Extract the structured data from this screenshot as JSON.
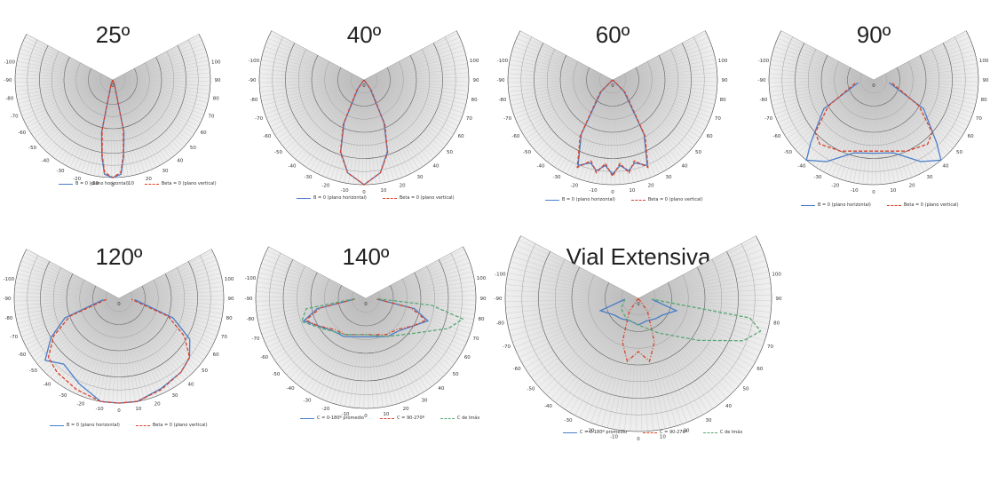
{
  "colors": {
    "blue": "#4a7ec8",
    "red": "#d8432a",
    "green": "#5aa876",
    "fill_dark": "#b9b9b9",
    "fill_light": "#f0f0f0",
    "grid": "#666666"
  },
  "chart_data": [
    {
      "type": "polar",
      "title": "25º",
      "angle_ticks_left": [
        "-100",
        "-90",
        "-80",
        "-70",
        "-60",
        "-50",
        "-40",
        "-30",
        "-20",
        "-10"
      ],
      "angle_ticks_right": [
        "100",
        "90",
        "80",
        "70",
        "60",
        "50",
        "40",
        "30",
        "20",
        "10"
      ],
      "angle_tick_bottom": "0",
      "radial_tick": "0",
      "series": [
        {
          "name": "B = 0 (plano horizontal)",
          "color": "blue",
          "dash": "solid",
          "points": [
            [
              -40,
              0
            ],
            [
              -20,
              0.05
            ],
            [
              -12,
              0.55
            ],
            [
              -8,
              0.8
            ],
            [
              -5,
              0.97
            ],
            [
              0,
              1.0
            ],
            [
              5,
              0.97
            ],
            [
              8,
              0.8
            ],
            [
              12,
              0.55
            ],
            [
              20,
              0.05
            ],
            [
              40,
              0
            ]
          ]
        },
        {
          "name": "Beta = 0 (plano vertical)",
          "color": "red",
          "dash": "dashed",
          "points": [
            [
              -40,
              0
            ],
            [
              -20,
              0.05
            ],
            [
              -12,
              0.52
            ],
            [
              -8,
              0.78
            ],
            [
              -5,
              0.95
            ],
            [
              0,
              1.0
            ],
            [
              5,
              0.95
            ],
            [
              8,
              0.78
            ],
            [
              12,
              0.52
            ],
            [
              20,
              0.05
            ],
            [
              40,
              0
            ]
          ]
        }
      ]
    },
    {
      "type": "polar",
      "title": "40º",
      "angle_ticks_left": [
        "-100",
        "-90",
        "-80",
        "-70",
        "-60",
        "-50",
        "-40",
        "-30",
        "-20",
        "-10"
      ],
      "angle_ticks_right": [
        "100",
        "90",
        "80",
        "70",
        "60",
        "50",
        "40",
        "30",
        "20",
        "10"
      ],
      "angle_tick_bottom": "0",
      "radial_tick": "0",
      "series": [
        {
          "name": "B = 0 (plano horizontal)",
          "color": "blue",
          "dash": "solid",
          "points": [
            [
              -60,
              0
            ],
            [
              -35,
              0.1
            ],
            [
              -25,
              0.45
            ],
            [
              -18,
              0.72
            ],
            [
              -10,
              0.9
            ],
            [
              0,
              1.0
            ],
            [
              10,
              0.9
            ],
            [
              18,
              0.72
            ],
            [
              25,
              0.45
            ],
            [
              35,
              0.1
            ],
            [
              60,
              0
            ]
          ]
        },
        {
          "name": "Beta = 0 (plano vertical)",
          "color": "red",
          "dash": "dashed",
          "points": [
            [
              -60,
              0
            ],
            [
              -35,
              0.12
            ],
            [
              -25,
              0.47
            ],
            [
              -18,
              0.73
            ],
            [
              -10,
              0.9
            ],
            [
              0,
              1.0
            ],
            [
              10,
              0.9
            ],
            [
              18,
              0.73
            ],
            [
              25,
              0.47
            ],
            [
              35,
              0.12
            ],
            [
              60,
              0
            ]
          ]
        }
      ]
    },
    {
      "type": "polar",
      "title": "60º",
      "angle_ticks_left": [
        "-100",
        "-90",
        "-80",
        "-70",
        "-60",
        "-50",
        "-40",
        "-30",
        "-20",
        "-10"
      ],
      "angle_ticks_right": [
        "100",
        "90",
        "80",
        "70",
        "60",
        "50",
        "40",
        "30",
        "20",
        "10"
      ],
      "angle_tick_bottom": "0",
      "radial_tick": "0",
      "series": [
        {
          "name": "B = 0 (plano horizontal)",
          "color": "blue",
          "dash": "solid",
          "points": [
            [
              -65,
              0
            ],
            [
              -45,
              0.15
            ],
            [
              -30,
              0.6
            ],
            [
              -22,
              0.88
            ],
            [
              -15,
              0.82
            ],
            [
              -10,
              0.88
            ],
            [
              -5,
              0.82
            ],
            [
              0,
              0.9
            ],
            [
              5,
              0.82
            ],
            [
              10,
              0.88
            ],
            [
              15,
              0.82
            ],
            [
              22,
              0.88
            ],
            [
              30,
              0.6
            ],
            [
              45,
              0.15
            ],
            [
              65,
              0
            ]
          ]
        },
        {
          "name": "Beta = 0 (plano vertical)",
          "color": "red",
          "dash": "dashed",
          "points": [
            [
              -65,
              0
            ],
            [
              -45,
              0.17
            ],
            [
              -30,
              0.62
            ],
            [
              -22,
              0.9
            ],
            [
              -15,
              0.8
            ],
            [
              -10,
              0.9
            ],
            [
              -5,
              0.8
            ],
            [
              0,
              0.92
            ],
            [
              5,
              0.8
            ],
            [
              10,
              0.9
            ],
            [
              15,
              0.8
            ],
            [
              22,
              0.9
            ],
            [
              30,
              0.62
            ],
            [
              45,
              0.17
            ],
            [
              65,
              0
            ]
          ]
        }
      ]
    },
    {
      "type": "polar",
      "title": "90º",
      "angle_ticks_left": [
        "-100",
        "-90",
        "-80",
        "-70",
        "-60",
        "-50",
        "-40",
        "-30",
        "-20",
        "-10"
      ],
      "angle_ticks_right": [
        "100",
        "90",
        "80",
        "70",
        "60",
        "50",
        "40",
        "30",
        "20",
        "10"
      ],
      "angle_tick_bottom": "0",
      "radial_tick": "0",
      "series": [
        {
          "name": "B = 0 (plano horizontal)",
          "color": "blue",
          "dash": "solid",
          "points": [
            [
              -80,
              0.15
            ],
            [
              -60,
              0.55
            ],
            [
              -45,
              0.85
            ],
            [
              -40,
              1.0
            ],
            [
              -30,
              0.9
            ],
            [
              -15,
              0.72
            ],
            [
              0,
              0.7
            ],
            [
              15,
              0.72
            ],
            [
              30,
              0.9
            ],
            [
              40,
              1.0
            ],
            [
              45,
              0.85
            ],
            [
              60,
              0.55
            ],
            [
              80,
              0.15
            ]
          ]
        },
        {
          "name": "Beta = 0 (plano vertical)",
          "color": "red",
          "dash": "dashed",
          "points": [
            [
              -80,
              0.18
            ],
            [
              -60,
              0.5
            ],
            [
              -48,
              0.75
            ],
            [
              -40,
              0.8
            ],
            [
              -25,
              0.75
            ],
            [
              0,
              0.68
            ],
            [
              25,
              0.75
            ],
            [
              40,
              0.8
            ],
            [
              48,
              0.75
            ],
            [
              60,
              0.5
            ],
            [
              80,
              0.18
            ]
          ]
        }
      ]
    },
    {
      "type": "polar",
      "title": "120º",
      "angle_ticks_left": [
        "-100",
        "-90",
        "-80",
        "-70",
        "-60",
        "-50",
        "-40",
        "-30",
        "-20",
        "-10"
      ],
      "angle_ticks_right": [
        "100",
        "90",
        "80",
        "70",
        "60",
        "50",
        "40",
        "30",
        "20",
        "10"
      ],
      "angle_tick_bottom": "0",
      "radial_tick": "0",
      "series": [
        {
          "name": "B = 0 (plano horizontal)",
          "color": "blue",
          "dash": "solid",
          "points": [
            [
              -85,
              0.15
            ],
            [
              -70,
              0.55
            ],
            [
              -60,
              0.75
            ],
            [
              -50,
              0.92
            ],
            [
              -40,
              0.82
            ],
            [
              -25,
              0.9
            ],
            [
              -10,
              1.0
            ],
            [
              0,
              1.0
            ],
            [
              10,
              1.0
            ],
            [
              25,
              0.95
            ],
            [
              40,
              0.92
            ],
            [
              50,
              0.88
            ],
            [
              60,
              0.78
            ],
            [
              70,
              0.55
            ],
            [
              85,
              0.15
            ]
          ]
        },
        {
          "name": "Beta = 0 (plano vertical)",
          "color": "red",
          "dash": "dashed",
          "points": [
            [
              -85,
              0.12
            ],
            [
              -70,
              0.5
            ],
            [
              -60,
              0.72
            ],
            [
              -50,
              0.88
            ],
            [
              -40,
              0.92
            ],
            [
              -25,
              0.96
            ],
            [
              -10,
              1.0
            ],
            [
              0,
              1.0
            ],
            [
              10,
              1.0
            ],
            [
              25,
              0.96
            ],
            [
              40,
              0.92
            ],
            [
              50,
              0.88
            ],
            [
              60,
              0.72
            ],
            [
              70,
              0.5
            ],
            [
              85,
              0.12
            ]
          ]
        }
      ]
    },
    {
      "type": "polar",
      "title": "140º",
      "angle_ticks_left": [
        "-100",
        "-90",
        "-80",
        "-70",
        "-60",
        "-50",
        "-40",
        "-30",
        "-20",
        "-10"
      ],
      "angle_ticks_right": [
        "100",
        "90",
        "80",
        "70",
        "60",
        "50",
        "40",
        "30",
        "20",
        "10"
      ],
      "angle_tick_bottom": "0",
      "radial_tick": "0",
      "series": [
        {
          "name": "C = 0-180º promedio",
          "color": "blue",
          "dash": "solid",
          "points": [
            [
              -86,
              0.1
            ],
            [
              -78,
              0.45
            ],
            [
              -70,
              0.6
            ],
            [
              -60,
              0.5
            ],
            [
              -45,
              0.42
            ],
            [
              -30,
              0.4
            ],
            [
              0,
              0.35
            ],
            [
              30,
              0.4
            ],
            [
              45,
              0.42
            ],
            [
              60,
              0.5
            ],
            [
              70,
              0.6
            ],
            [
              78,
              0.45
            ],
            [
              86,
              0.1
            ]
          ]
        },
        {
          "name": "C = 90-270º",
          "color": "red",
          "dash": "dashdot",
          "points": [
            [
              -86,
              0.1
            ],
            [
              -78,
              0.42
            ],
            [
              -70,
              0.58
            ],
            [
              -60,
              0.5
            ],
            [
              -45,
              0.4
            ],
            [
              -30,
              0.38
            ],
            [
              0,
              0.33
            ],
            [
              30,
              0.38
            ],
            [
              45,
              0.4
            ],
            [
              60,
              0.5
            ],
            [
              70,
              0.58
            ],
            [
              78,
              0.42
            ],
            [
              86,
              0.1
            ]
          ]
        },
        {
          "name": "C de Imáx",
          "color": "green",
          "dash": "dashed",
          "points": [
            [
              -88,
              0.1
            ],
            [
              -80,
              0.55
            ],
            [
              -70,
              0.62
            ],
            [
              -55,
              0.48
            ],
            [
              -30,
              0.38
            ],
            [
              0,
              0.33
            ],
            [
              30,
              0.4
            ],
            [
              55,
              0.55
            ],
            [
              70,
              0.8
            ],
            [
              78,
              0.9
            ],
            [
              84,
              0.6
            ],
            [
              88,
              0.1
            ]
          ]
        }
      ]
    },
    {
      "type": "polar",
      "title": "Vial Extensiva",
      "angle_ticks_left": [
        "-100",
        "-90",
        "-80",
        "-70",
        "-60",
        "-50",
        "-40",
        "-30",
        "-20",
        "-10"
      ],
      "angle_ticks_right": [
        "100",
        "90",
        "80",
        "70",
        "60",
        "50",
        "40",
        "30",
        "20",
        "10"
      ],
      "angle_tick_bottom": "0",
      "radial_tick": "0",
      "series": [
        {
          "name": "C = 0-180º promedio",
          "color": "blue",
          "dash": "solid",
          "points": [
            [
              -86,
              0.1
            ],
            [
              -72,
              0.3
            ],
            [
              -55,
              0.22
            ],
            [
              -40,
              0.2
            ],
            [
              -20,
              0.18
            ],
            [
              0,
              0.2
            ],
            [
              20,
              0.18
            ],
            [
              40,
              0.2
            ],
            [
              55,
              0.22
            ],
            [
              72,
              0.3
            ],
            [
              86,
              0.1
            ]
          ]
        },
        {
          "name": "C = 90-270º",
          "color": "red",
          "dash": "dashdot",
          "points": [
            [
              -60,
              0
            ],
            [
              -35,
              0.12
            ],
            [
              -20,
              0.35
            ],
            [
              -10,
              0.48
            ],
            [
              0,
              0.4
            ],
            [
              10,
              0.48
            ],
            [
              20,
              0.35
            ],
            [
              35,
              0.12
            ],
            [
              60,
              0
            ]
          ]
        },
        {
          "name": "C de Imáx",
          "color": "green",
          "dash": "dashed",
          "points": [
            [
              -86,
              0.1
            ],
            [
              -60,
              0.15
            ],
            [
              -30,
              0.18
            ],
            [
              0,
              0.2
            ],
            [
              30,
              0.3
            ],
            [
              55,
              0.55
            ],
            [
              68,
              0.85
            ],
            [
              75,
              0.95
            ],
            [
              80,
              0.85
            ],
            [
              86,
              0.1
            ]
          ]
        }
      ]
    }
  ]
}
